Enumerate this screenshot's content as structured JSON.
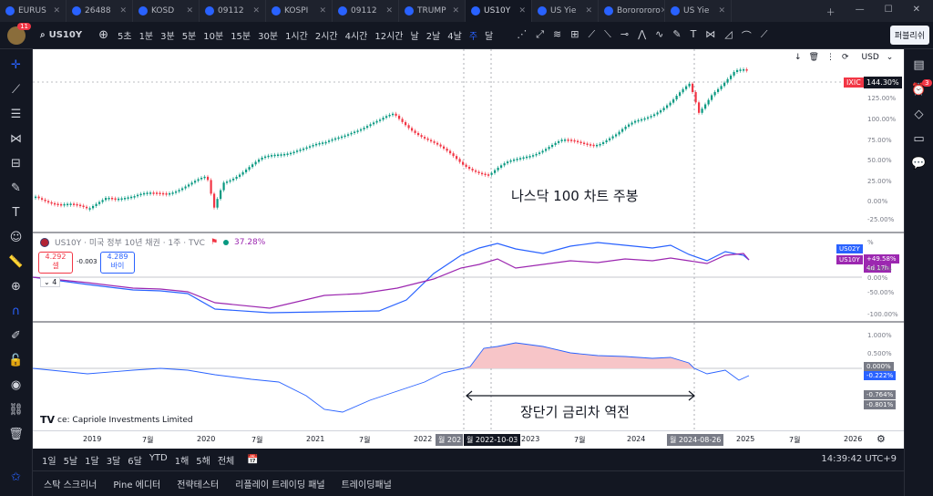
{
  "tabs": [
    {
      "label": "EURUS",
      "active": false
    },
    {
      "label": "26488",
      "active": false
    },
    {
      "label": "KOSD",
      "active": false
    },
    {
      "label": "09112",
      "active": false
    },
    {
      "label": "KOSPI",
      "active": false
    },
    {
      "label": "09112",
      "active": false
    },
    {
      "label": "TRUMP",
      "active": false
    },
    {
      "label": "US10Y",
      "active": true
    },
    {
      "label": "US Yie",
      "active": false
    },
    {
      "label": "Bororororo",
      "active": false
    },
    {
      "label": "US Yie",
      "active": false
    }
  ],
  "toolbar": {
    "avatar_badge": "11",
    "symbol": "US10Y",
    "timeframes": [
      "5초",
      "1분",
      "3분",
      "5분",
      "10분",
      "15분",
      "30분",
      "1시간",
      "2시간",
      "4시간",
      "12시간",
      "날",
      "2날",
      "4날",
      "주",
      "달"
    ],
    "selected_timeframe": "주",
    "publish": "퍼블리쉬"
  },
  "chart": {
    "main_annotation": "나스닥 100 차트 주봉",
    "ndx_label": "IXIC",
    "ndx_value": "144.30%",
    "ndx_axis": [
      "125.00%",
      "100.00%",
      "75.00%",
      "50.00%",
      "25.00%",
      "0.00%",
      "-25.00%"
    ],
    "currency": "USD",
    "legend_title": "US10Y · 미국 정부 10년 채권 · 1주 · TVC",
    "legend_pct": "37.28%",
    "sell_price": "4.292",
    "sell_label": "셀",
    "buy_price": "4.289",
    "buy_label": "바이",
    "spread": "-0.003",
    "indicator_count": "4",
    "mid_axis": [
      "%",
      "50.00%",
      "0.00%",
      "-50.00%",
      "-100.00%"
    ],
    "us02y_label": "US02Y",
    "us10y_label": "US10Y",
    "us10y_value": "+49.58%",
    "us10y_countdown": "4d 17h",
    "lower_axis": [
      "1.000%",
      "0.500%"
    ],
    "lower_values": [
      "0.000%",
      "-0.222%",
      "-0.764%",
      "-0.801%"
    ],
    "inversion_annotation": "장단기 금리차 역전",
    "source": "ce: Capriole Investments Limited",
    "x_labels": [
      "2019",
      "7월",
      "2020",
      "7월",
      "2021",
      "7월",
      "2022",
      "7월",
      "2023",
      "7월",
      "2024",
      "7월",
      "2025",
      "7월",
      "2026"
    ],
    "x_label_left_partial": "월 202",
    "date_marker_1": "월 2022-10-03",
    "date_marker_1_partial": "3",
    "date_marker_2": "월 2024-08-26"
  },
  "ranges": [
    "1일",
    "5날",
    "1달",
    "3달",
    "6달",
    "YTD",
    "1해",
    "5해",
    "전체"
  ],
  "clock": "14:39:42 UTC+9",
  "bottom_tabs": [
    "스탁 스크리너",
    "Pine 에디터",
    "전략테스터",
    "리플레이 트레이딩 패널",
    "트레이딩패널"
  ],
  "right_badge": "3",
  "colors": {
    "accent": "#2962ff",
    "up": "#089981",
    "down": "#f23645",
    "spread": "#2962ff",
    "purple": "#9c27b0"
  }
}
